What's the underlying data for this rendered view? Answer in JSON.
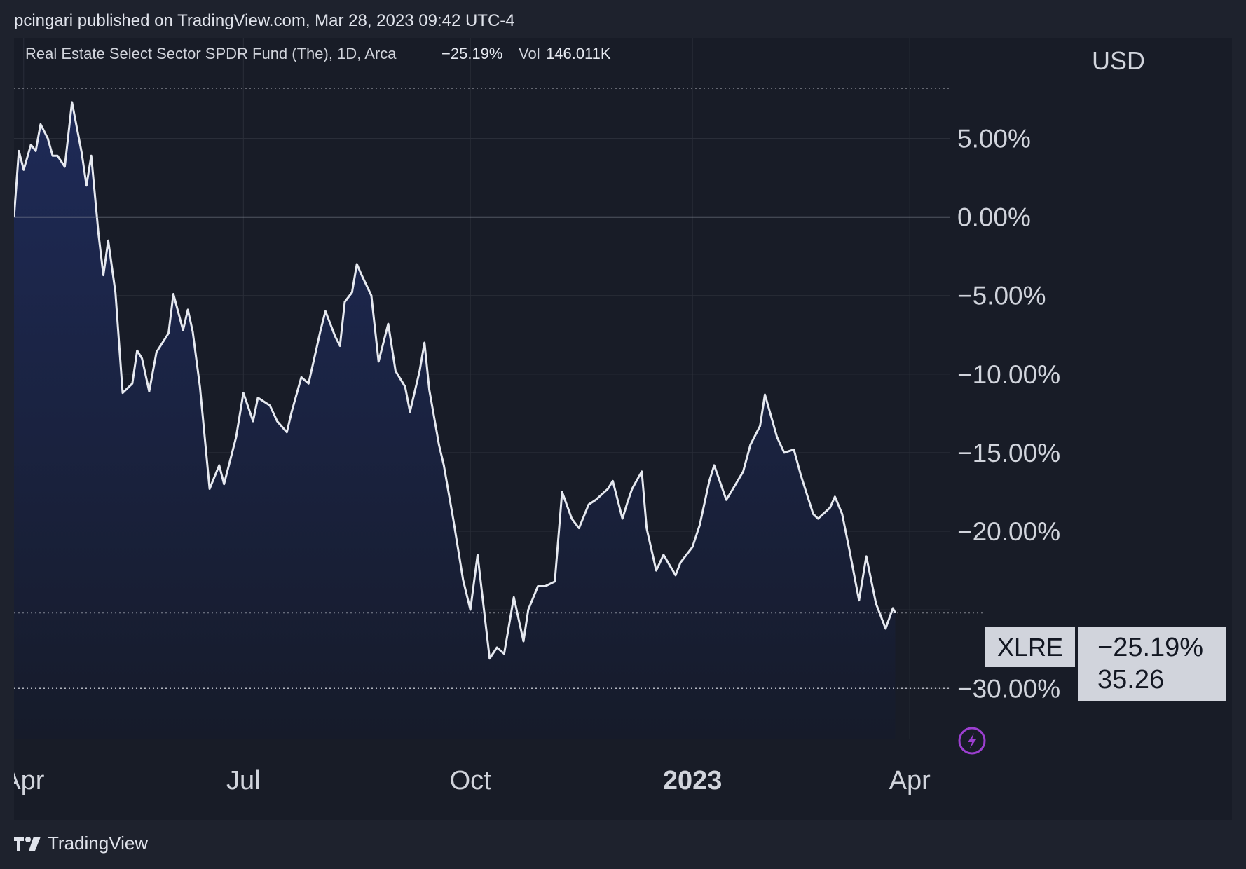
{
  "header": {
    "publisher_line": "pcingari published on TradingView.com, Mar 28, 2023 09:42 UTC-4"
  },
  "legend": {
    "instrument": "Real Estate Select Sector SPDR Fund (The), 1D, Arca",
    "change": "−25.19%",
    "vol_label": "Vol",
    "vol_value": "146.011K"
  },
  "footer": {
    "brand": "TradingView"
  },
  "colors": {
    "background": "#1e222d",
    "panel": "#181c27",
    "line": "#e6e9f0",
    "area_top": "#1e2a57",
    "area_bottom": "#161b2a",
    "text": "#d1d4dc",
    "label_bg": "#d1d4dc",
    "label_text": "#131722",
    "lightning": "#9c3fd0"
  },
  "chart_data": {
    "type": "area",
    "unit_label": "USD",
    "ticker": "XLRE",
    "last_change_label": "−25.19%",
    "last_price_label": "35.26",
    "baseline": 0,
    "ylim": [
      -33.2,
      11.4
    ],
    "y_ticks": [
      {
        "value": 5,
        "label": "5.00%"
      },
      {
        "value": 0,
        "label": "0.00%"
      },
      {
        "value": -5,
        "label": "−5.00%"
      },
      {
        "value": -10,
        "label": "−10.00%"
      },
      {
        "value": -15,
        "label": "−15.00%"
      },
      {
        "value": -20,
        "label": "−20.00%"
      },
      {
        "value": -30,
        "label": "−30.00%"
      }
    ],
    "hidden_gridline": -25,
    "dotted_lines": [
      8.2,
      -30.0
    ],
    "x_labels": [
      {
        "date": "2022-04-01",
        "label": "Apr",
        "bold": false
      },
      {
        "date": "2022-07-01",
        "label": "Jul",
        "bold": false
      },
      {
        "date": "2022-10-03",
        "label": "Oct",
        "bold": false
      },
      {
        "date": "2023-01-03",
        "label": "2023",
        "bold": true
      },
      {
        "date": "2023-04-03",
        "label": "Apr",
        "bold": false
      }
    ],
    "x_range": [
      "2022-03-28",
      "2023-05-04"
    ],
    "series": [
      {
        "values": [
          [
            "2022-03-28",
            0.0
          ],
          [
            "2022-03-30",
            4.2
          ],
          [
            "2022-04-01",
            3.0
          ],
          [
            "2022-04-04",
            4.6
          ],
          [
            "2022-04-06",
            4.2
          ],
          [
            "2022-04-08",
            5.9
          ],
          [
            "2022-04-11",
            5.0
          ],
          [
            "2022-04-13",
            3.9
          ],
          [
            "2022-04-15",
            3.9
          ],
          [
            "2022-04-18",
            3.2
          ],
          [
            "2022-04-21",
            7.3
          ],
          [
            "2022-04-25",
            4.1
          ],
          [
            "2022-04-27",
            2.0
          ],
          [
            "2022-04-29",
            3.9
          ],
          [
            "2022-05-02",
            -1.1
          ],
          [
            "2022-05-04",
            -3.7
          ],
          [
            "2022-05-06",
            -1.5
          ],
          [
            "2022-05-09",
            -4.8
          ],
          [
            "2022-05-12",
            -11.2
          ],
          [
            "2022-05-16",
            -10.6
          ],
          [
            "2022-05-18",
            -8.5
          ],
          [
            "2022-05-20",
            -9.0
          ],
          [
            "2022-05-23",
            -11.1
          ],
          [
            "2022-05-26",
            -8.6
          ],
          [
            "2022-05-31",
            -7.4
          ],
          [
            "2022-06-02",
            -4.9
          ],
          [
            "2022-06-06",
            -7.2
          ],
          [
            "2022-06-08",
            -5.9
          ],
          [
            "2022-06-10",
            -7.3
          ],
          [
            "2022-06-13",
            -10.8
          ],
          [
            "2022-06-17",
            -17.3
          ],
          [
            "2022-06-21",
            -15.8
          ],
          [
            "2022-06-23",
            -17.0
          ],
          [
            "2022-06-28",
            -14.0
          ],
          [
            "2022-07-01",
            -11.2
          ],
          [
            "2022-07-05",
            -13.0
          ],
          [
            "2022-07-07",
            -11.5
          ],
          [
            "2022-07-12",
            -12.0
          ],
          [
            "2022-07-15",
            -13.0
          ],
          [
            "2022-07-19",
            -13.7
          ],
          [
            "2022-07-21",
            -12.4
          ],
          [
            "2022-07-25",
            -10.2
          ],
          [
            "2022-07-28",
            -10.6
          ],
          [
            "2022-08-02",
            -7.2
          ],
          [
            "2022-08-04",
            -6.0
          ],
          [
            "2022-08-08",
            -7.6
          ],
          [
            "2022-08-10",
            -8.2
          ],
          [
            "2022-08-12",
            -5.4
          ],
          [
            "2022-08-15",
            -4.8
          ],
          [
            "2022-08-17",
            -3.0
          ],
          [
            "2022-08-19",
            -3.7
          ],
          [
            "2022-08-23",
            -5.0
          ],
          [
            "2022-08-26",
            -9.2
          ],
          [
            "2022-08-30",
            -6.8
          ],
          [
            "2022-09-02",
            -9.8
          ],
          [
            "2022-09-06",
            -10.8
          ],
          [
            "2022-09-08",
            -12.4
          ],
          [
            "2022-09-12",
            -9.8
          ],
          [
            "2022-09-14",
            -8.0
          ],
          [
            "2022-09-16",
            -11.0
          ],
          [
            "2022-09-20",
            -14.5
          ],
          [
            "2022-09-22",
            -15.8
          ],
          [
            "2022-09-26",
            -19.3
          ],
          [
            "2022-09-30",
            -23.1
          ],
          [
            "2022-10-03",
            -25.0
          ],
          [
            "2022-10-06",
            -21.5
          ],
          [
            "2022-10-11",
            -28.1
          ],
          [
            "2022-10-14",
            -27.4
          ],
          [
            "2022-10-17",
            -27.8
          ],
          [
            "2022-10-21",
            -24.2
          ],
          [
            "2022-10-25",
            -27.0
          ],
          [
            "2022-10-27",
            -25.0
          ],
          [
            "2022-10-31",
            -23.5
          ],
          [
            "2022-11-03",
            -23.5
          ],
          [
            "2022-11-07",
            -23.2
          ],
          [
            "2022-11-10",
            -17.5
          ],
          [
            "2022-11-14",
            -19.2
          ],
          [
            "2022-11-17",
            -19.8
          ],
          [
            "2022-11-21",
            -18.3
          ],
          [
            "2022-11-24",
            -18.0
          ],
          [
            "2022-11-29",
            -17.3
          ],
          [
            "2022-12-01",
            -16.8
          ],
          [
            "2022-12-05",
            -19.2
          ],
          [
            "2022-12-07",
            -18.2
          ],
          [
            "2022-12-09",
            -17.3
          ],
          [
            "2022-12-13",
            -16.2
          ],
          [
            "2022-12-15",
            -19.8
          ],
          [
            "2022-12-19",
            -22.5
          ],
          [
            "2022-12-22",
            -21.5
          ],
          [
            "2022-12-27",
            -22.8
          ],
          [
            "2022-12-29",
            -22.0
          ],
          [
            "2023-01-03",
            -21.0
          ],
          [
            "2023-01-06",
            -19.6
          ],
          [
            "2023-01-10",
            -16.8
          ],
          [
            "2023-01-12",
            -15.8
          ],
          [
            "2023-01-17",
            -18.0
          ],
          [
            "2023-01-19",
            -17.5
          ],
          [
            "2023-01-24",
            -16.2
          ],
          [
            "2023-01-27",
            -14.5
          ],
          [
            "2023-01-31",
            -13.3
          ],
          [
            "2023-02-02",
            -11.3
          ],
          [
            "2023-02-07",
            -14.0
          ],
          [
            "2023-02-10",
            -15.0
          ],
          [
            "2023-02-14",
            -14.8
          ],
          [
            "2023-02-17",
            -16.5
          ],
          [
            "2023-02-22",
            -18.9
          ],
          [
            "2023-02-24",
            -19.2
          ],
          [
            "2023-03-01",
            -18.5
          ],
          [
            "2023-03-03",
            -17.8
          ],
          [
            "2023-03-06",
            -18.9
          ],
          [
            "2023-03-09",
            -21.2
          ],
          [
            "2023-03-13",
            -24.4
          ],
          [
            "2023-03-16",
            -21.6
          ],
          [
            "2023-03-20",
            -24.6
          ],
          [
            "2023-03-22",
            -25.4
          ],
          [
            "2023-03-24",
            -26.2
          ],
          [
            "2023-03-27",
            -24.9
          ],
          [
            "2023-03-28",
            -25.19
          ]
        ]
      }
    ]
  }
}
